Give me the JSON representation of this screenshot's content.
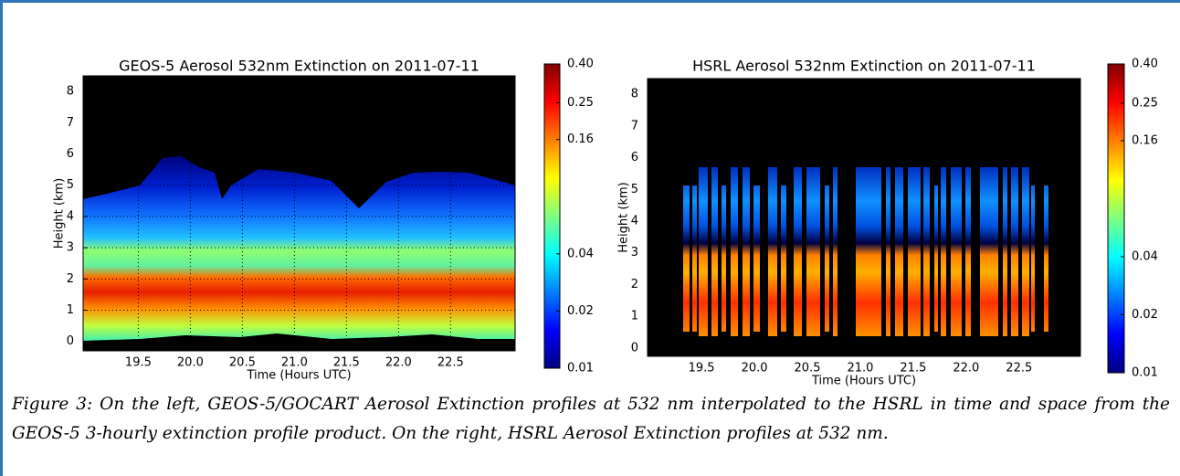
{
  "chart_data": [
    {
      "type": "heatmap",
      "title": "GEOS-5 Aerosol 532nm Extinction on 2011-07-11",
      "xlabel": "Time (Hours UTC)",
      "ylabel": "Height (km)",
      "xlim": [
        18.97,
        23.12
      ],
      "ylim": [
        -0.3,
        8.5
      ],
      "xticks": [
        19.5,
        {
          "value": 20,
          "label": "20.0"
        },
        20.5,
        {
          "value": 21,
          "label": "21.0"
        },
        21.5,
        {
          "value": 22,
          "label": "22.0"
        },
        22.5
      ],
      "yticks": [
        0,
        1,
        2,
        3,
        4,
        5,
        6,
        7,
        8
      ],
      "grid": true,
      "colorbar": {
        "scale": "log",
        "lim": [
          0.01,
          0.4
        ],
        "ticks": [
          0.01,
          0.02,
          0.04,
          0.16,
          0.25,
          {
            "value": 0.4,
            "label": "0.40"
          }
        ]
      }
    },
    {
      "type": "heatmap",
      "title": "HSRL Aerosol 532nm Extinction on 2011-07-11",
      "xlabel": "Time (Hours UTC)",
      "ylabel": "Height (km)",
      "xlim": [
        18.99,
        23.08
      ],
      "ylim": [
        -0.26,
        8.49
      ],
      "xticks": [
        19.5,
        {
          "value": 20,
          "label": "20.0"
        },
        20.5,
        {
          "value": 21,
          "label": "21.0"
        },
        21.5,
        {
          "value": 22,
          "label": "22.0"
        },
        22.5
      ],
      "yticks": [
        0,
        1,
        2,
        3,
        4,
        5,
        6,
        7,
        8
      ],
      "grid": false,
      "colorbar": {
        "scale": "log",
        "lim": [
          0.01,
          0.4
        ],
        "ticks": [
          0.01,
          0.02,
          0.04,
          0.16,
          0.25,
          {
            "value": 0.4,
            "label": "0.40"
          }
        ]
      }
    }
  ],
  "caption": "Figure 3: On the left, GEOS-5/GOCART Aerosol Extinction profiles at 532 nm interpolated to the HSRL in time and space from the GEOS-5 3-hourly extinction profile product. On the right, HSRL Aerosol Extinction profiles at 532 nm."
}
